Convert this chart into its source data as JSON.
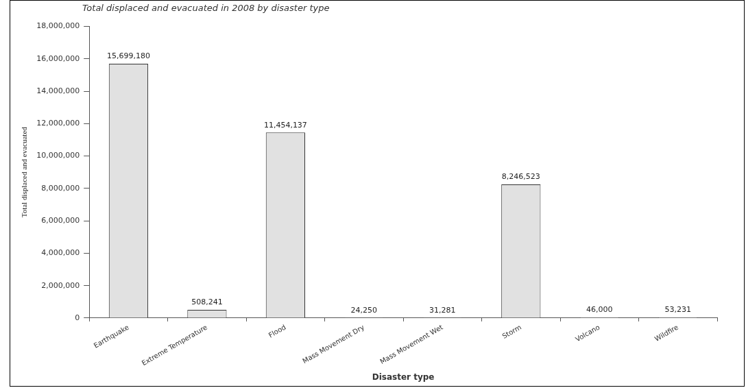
{
  "chart_data": {
    "type": "bar",
    "title": "Total displaced and evacuated in 2008 by disaster type",
    "xlabel": "Disaster type",
    "ylabel": "Total displaced and evacuated",
    "categories": [
      "Earthquake",
      "Extreme Temperature",
      "Flood",
      "Mass Movement Dry",
      "Mass Movement Wet",
      "Storm",
      "Volcano",
      "Wildfire"
    ],
    "values": [
      15699180,
      508241,
      11454137,
      24250,
      31281,
      8246523,
      46000,
      53231
    ],
    "color": "#e1e1e1",
    "ylim": [
      0,
      18000000
    ],
    "yticks": [
      {
        "value": 0,
        "label": "0"
      },
      {
        "value": 2000000,
        "label": "2,000,000"
      },
      {
        "value": 4000000,
        "label": "4,000,000"
      },
      {
        "value": 6000000,
        "label": "6,000,000"
      },
      {
        "value": 8000000,
        "label": "8,000,000"
      },
      {
        "value": 10000000,
        "label": "10,000,000"
      },
      {
        "value": 12000000,
        "label": "12,000,000"
      },
      {
        "value": 14000000,
        "label": "14,000,000"
      },
      {
        "value": 16000000,
        "label": "16,000,000"
      },
      {
        "value": 18000000,
        "label": "18,000,000"
      }
    ],
    "value_labels": [
      "15,699,180",
      "508,241",
      "11,454,137",
      "24,250",
      "31,281",
      "8,246,523",
      "46,000",
      "53,231"
    ],
    "grid": false,
    "legend": false
  }
}
